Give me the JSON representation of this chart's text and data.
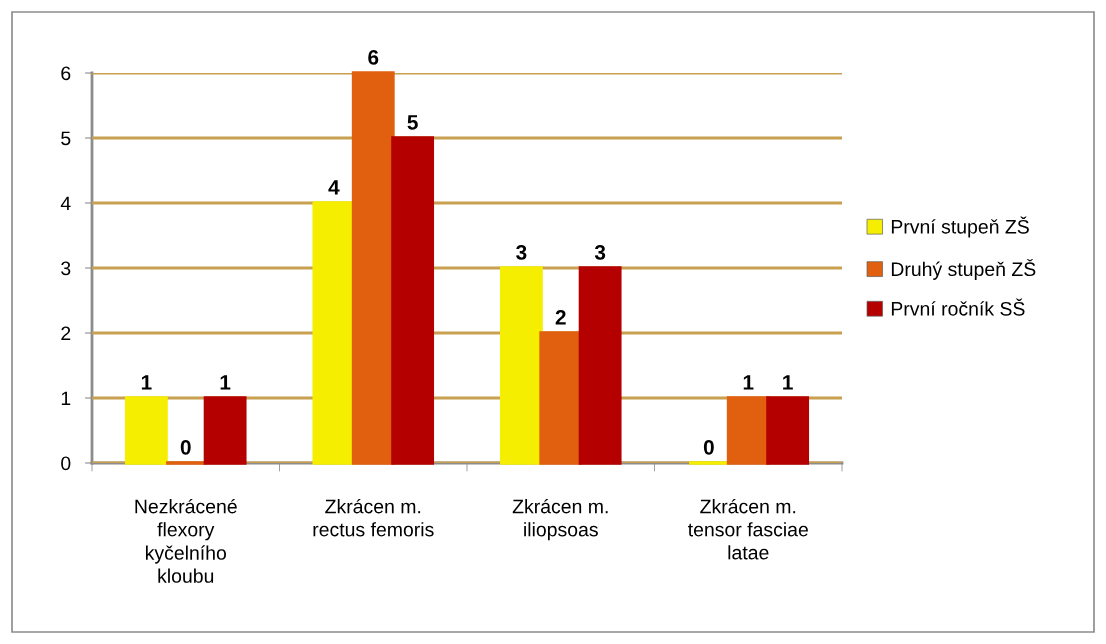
{
  "chart_data": {
    "type": "bar",
    "categories": [
      "Nezkrácené\nflexory\nkyčelního\nkloubu",
      "Zkrácen m.\nrectus femoris",
      "Zkrácen m.\niliopsoas",
      "Zkrácen m.\ntensor fasciae\nlatae"
    ],
    "series": [
      {
        "name": "První stupeň ZŠ",
        "color": "#f5ee00",
        "values": [
          1,
          4,
          3,
          0
        ]
      },
      {
        "name": "Druhý stupeň ZŠ",
        "color": "#e0600f",
        "values": [
          0,
          6,
          2,
          1
        ]
      },
      {
        "name": "První ročník SŠ",
        "color": "#b50000",
        "values": [
          1,
          5,
          3,
          1
        ]
      }
    ],
    "ylim": [
      0,
      6
    ],
    "yticks": [
      0,
      1,
      2,
      3,
      4,
      5,
      6
    ],
    "grid": "y",
    "legend": "right",
    "data_labels": true
  }
}
